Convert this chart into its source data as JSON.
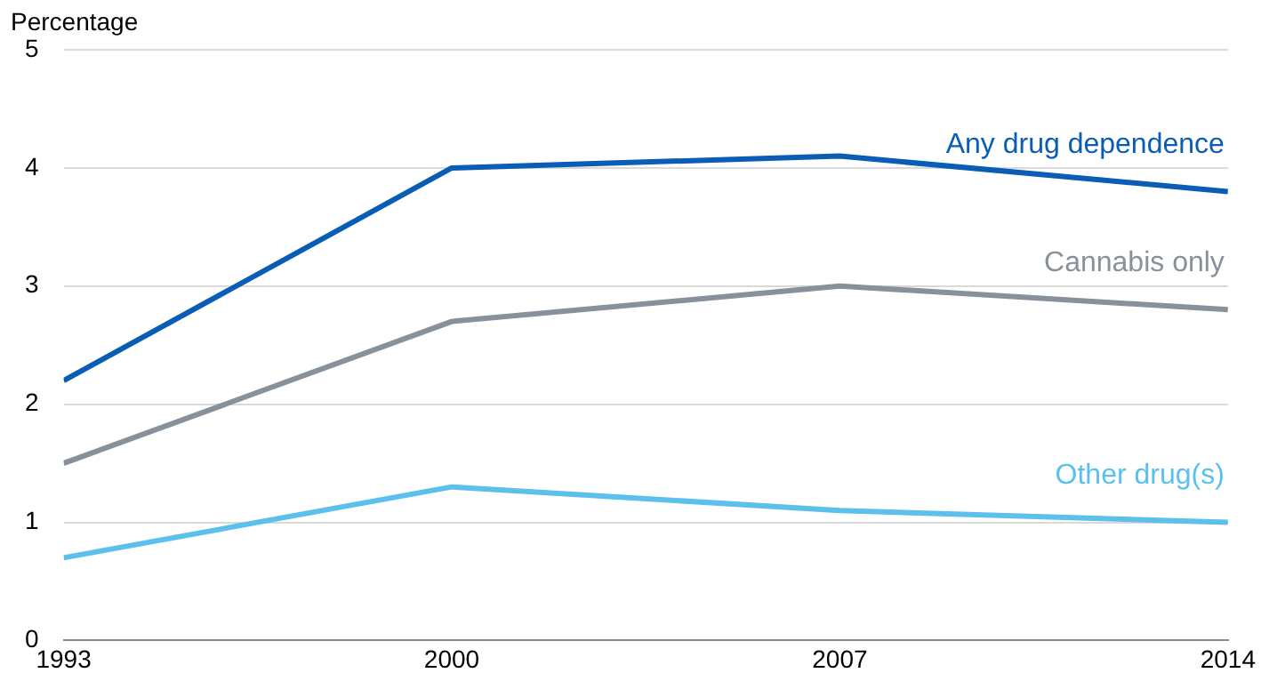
{
  "chart_data": {
    "type": "line",
    "ylabel": "Percentage",
    "x": [
      1993,
      2000,
      2007,
      2014
    ],
    "xlim": [
      1993,
      2014
    ],
    "xticks": [
      1993,
      2000,
      2007,
      2014
    ],
    "ylim": [
      0,
      5
    ],
    "yticks": [
      0,
      1,
      2,
      3,
      4,
      5
    ],
    "grid": "y",
    "legend": false,
    "marker": "none",
    "line_style": "solid",
    "series": [
      {
        "name": "Any drug dependence",
        "color": "#0a5db5",
        "values": [
          2.2,
          4.0,
          4.1,
          3.8
        ]
      },
      {
        "name": "Cannabis only",
        "color": "#87909b",
        "values": [
          1.5,
          2.7,
          3.0,
          2.8
        ]
      },
      {
        "name": "Other drug(s)",
        "color": "#5bc0ec",
        "values": [
          0.7,
          1.3,
          1.1,
          1.0
        ]
      }
    ]
  }
}
